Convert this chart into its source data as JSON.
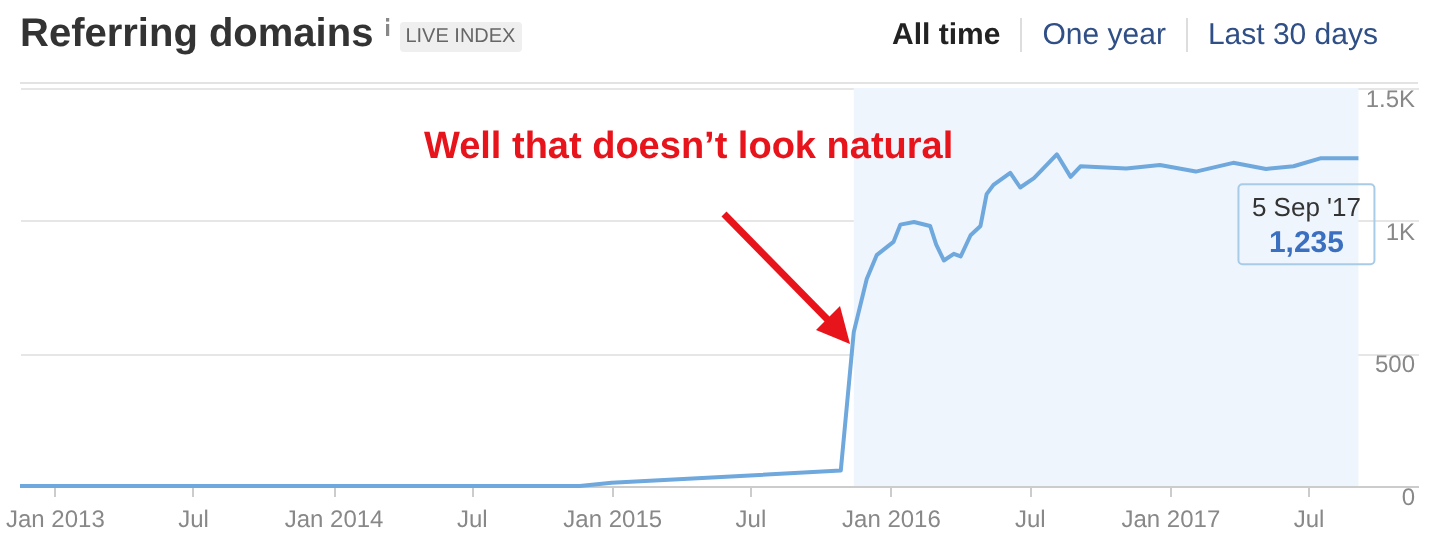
{
  "chart_data": {
    "type": "line",
    "title": "Referring domains",
    "annotations": [
      "LIVE INDEX",
      "All time",
      "One year",
      "Last 30 days",
      "Well that doesn’t look natural",
      {
        "text": "5 Sep '17",
        "x": "2017-09-05",
        "y": 1235
      },
      {
        "text": "1,235",
        "x": "2017-09-05",
        "y": 1235
      }
    ],
    "series": [
      {
        "color": "#6fa8dc",
        "x": [
          "2012-11-17",
          "2014-11-20",
          "2015-01-01",
          "2015-07-01",
          "2015-10-28",
          "2015-11-14",
          "2015-12-01",
          "2015-12-14",
          "2016-01-05",
          "2016-01-14",
          "2016-02-01",
          "2016-02-22",
          "2016-03-01",
          "2016-03-11",
          "2016-03-24",
          "2016-04-02",
          "2016-04-15",
          "2016-04-28",
          "2016-05-06",
          "2016-05-15",
          "2016-06-06",
          "2016-06-19",
          "2016-07-07",
          "2016-08-06",
          "2016-08-24",
          "2016-09-06",
          "2016-11-05",
          "2016-12-19",
          "2017-02-04",
          "2017-03-25",
          "2017-05-07",
          "2017-06-12",
          "2017-07-17",
          "2017-09-05"
        ],
        "values": [
          0,
          0,
          12,
          40,
          58,
          580,
          780,
          870,
          920,
          985,
          995,
          980,
          910,
          850,
          875,
          865,
          945,
          980,
          1100,
          1135,
          1180,
          1125,
          1160,
          1250,
          1165,
          1205,
          1197,
          1210,
          1185,
          1218,
          1195,
          1205,
          1235,
          1235
        ]
      }
    ],
    "xlim": [
      "2012-11-17",
      "2017-11-22"
    ],
    "xticks": [
      {
        "value": "2013-01-01",
        "label": "Jan 2013"
      },
      {
        "value": "2013-07-01",
        "label": "Jul"
      },
      {
        "value": "2014-01-01",
        "label": "Jan 2014"
      },
      {
        "value": "2014-07-01",
        "label": "Jul"
      },
      {
        "value": "2015-01-01",
        "label": "Jan 2015"
      },
      {
        "value": "2015-07-01",
        "label": "Jul"
      },
      {
        "value": "2016-01-01",
        "label": "Jan 2016"
      },
      {
        "value": "2016-07-01",
        "label": "Jul"
      },
      {
        "value": "2017-01-01",
        "label": "Jan 2017"
      },
      {
        "value": "2017-07-01",
        "label": "Jul"
      }
    ],
    "ylim": [
      0,
      1500
    ],
    "yticks": [
      0,
      500,
      {
        "value": 1000,
        "label": "1K"
      },
      {
        "value": 1500,
        "label": "1.5K"
      }
    ],
    "bands": [
      {
        "axis": "x",
        "from": "2015-11-14",
        "to": "2017-09-05",
        "color": "#eef5fd"
      }
    ],
    "grid": "y"
  }
}
